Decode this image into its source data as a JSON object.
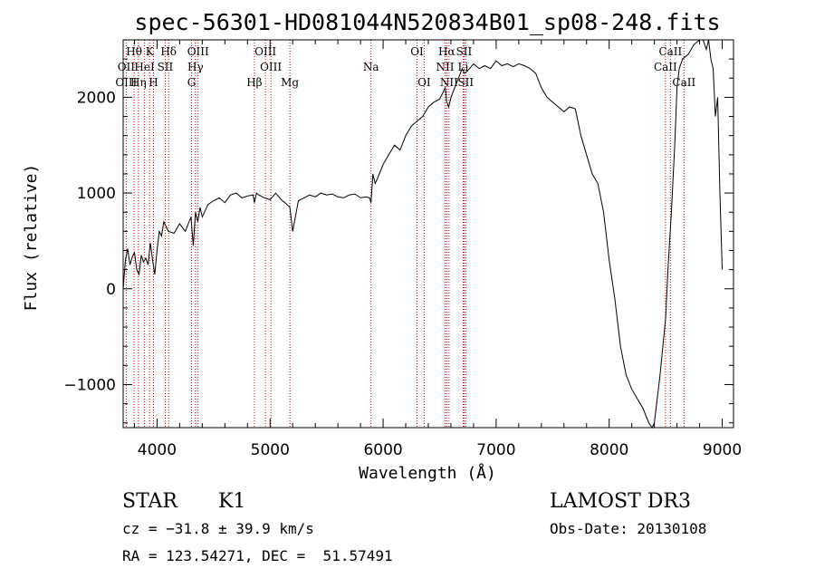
{
  "chart_data": {
    "type": "line",
    "title": "spec-56301-HD081044N520834B01_sp08-248.fits",
    "xlabel": "Wavelength (Å)",
    "ylabel": "Flux (relative)",
    "xlim": [
      3700,
      9100
    ],
    "ylim": [
      -1450,
      2600
    ],
    "x_ticks": [
      4000,
      5000,
      6000,
      7000,
      8000,
      9000
    ],
    "x_tick_labels": [
      "4000",
      "5000",
      "6000",
      "7000",
      "8000",
      "9000"
    ],
    "y_ticks": [
      -1000,
      0,
      1000,
      2000
    ],
    "y_tick_labels": [
      "−1000",
      "0",
      "1000",
      "2000"
    ],
    "series": [
      {
        "name": "flux",
        "x": [
          3700,
          3720,
          3740,
          3760,
          3780,
          3800,
          3820,
          3840,
          3860,
          3880,
          3900,
          3920,
          3940,
          3960,
          3980,
          4000,
          4020,
          4040,
          4060,
          4080,
          4100,
          4150,
          4200,
          4250,
          4300,
          4320,
          4340,
          4360,
          4380,
          4400,
          4450,
          4500,
          4550,
          4600,
          4650,
          4700,
          4750,
          4800,
          4850,
          4861,
          4880,
          4900,
          4950,
          5000,
          5050,
          5100,
          5150,
          5175,
          5200,
          5250,
          5300,
          5350,
          5400,
          5450,
          5500,
          5550,
          5600,
          5650,
          5700,
          5750,
          5800,
          5850,
          5880,
          5893,
          5910,
          5930,
          5950,
          6000,
          6050,
          6100,
          6150,
          6200,
          6250,
          6300,
          6350,
          6400,
          6450,
          6500,
          6550,
          6563,
          6580,
          6600,
          6650,
          6700,
          6720,
          6750,
          6800,
          6850,
          6900,
          6950,
          7000,
          7050,
          7100,
          7150,
          7200,
          7250,
          7300,
          7350,
          7400,
          7450,
          7500,
          7550,
          7600,
          7650,
          7700,
          7750,
          7800,
          7850,
          7900,
          7950,
          8000,
          8050,
          8100,
          8150,
          8200,
          8250,
          8300,
          8350,
          8380,
          8400,
          8420,
          8450,
          8500,
          8520,
          8550,
          8580,
          8600,
          8620,
          8650,
          8700,
          8750,
          8800,
          8830,
          8860,
          8880,
          8900,
          8920,
          8940,
          8960,
          8980,
          9000
        ],
        "values": [
          0,
          300,
          420,
          250,
          330,
          380,
          200,
          150,
          350,
          280,
          320,
          250,
          480,
          300,
          150,
          400,
          600,
          550,
          700,
          650,
          600,
          580,
          680,
          600,
          750,
          450,
          800,
          700,
          850,
          750,
          880,
          920,
          950,
          900,
          980,
          1000,
          950,
          970,
          980,
          900,
          1000,
          980,
          950,
          930,
          1000,
          930,
          880,
          850,
          600,
          920,
          950,
          980,
          960,
          1000,
          980,
          990,
          960,
          950,
          980,
          990,
          950,
          960,
          950,
          900,
          1200,
          1100,
          1150,
          1300,
          1400,
          1500,
          1450,
          1600,
          1700,
          1750,
          1800,
          1900,
          1950,
          1980,
          2100,
          1950,
          1900,
          2000,
          2150,
          2300,
          2250,
          2280,
          2350,
          2300,
          2330,
          2300,
          2380,
          2330,
          2350,
          2320,
          2350,
          2330,
          2300,
          2250,
          2100,
          2000,
          1950,
          1900,
          1850,
          1900,
          1880,
          1600,
          1400,
          1200,
          1100,
          800,
          300,
          -100,
          -600,
          -900,
          -1050,
          -1150,
          -1250,
          -1400,
          -1450,
          -1400,
          -1200,
          -900,
          -300,
          200,
          800,
          1500,
          2100,
          2300,
          2400,
          2450,
          2550,
          2600,
          2650,
          2500,
          2600,
          2400,
          2300,
          1800,
          2000,
          1000,
          200
        ]
      }
    ],
    "spectral_lines": [
      {
        "name": "Hθ",
        "wavelength": 3797,
        "row": 1
      },
      {
        "name": "K",
        "wavelength": 3934,
        "row": 1
      },
      {
        "name": "Hδ",
        "wavelength": 4102,
        "row": 1
      },
      {
        "name": "OIII",
        "wavelength": 4363,
        "row": 1
      },
      {
        "name": "OIII",
        "wavelength": 4959,
        "row": 1
      },
      {
        "name": "OI",
        "wavelength": 6300,
        "row": 1
      },
      {
        "name": "Hα",
        "wavelength": 6563,
        "row": 1
      },
      {
        "name": "SII",
        "wavelength": 6716,
        "row": 1
      },
      {
        "name": "CaII",
        "wavelength": 8542,
        "row": 1
      },
      {
        "name": "OII",
        "wavelength": 3727,
        "row": 2
      },
      {
        "name": "HeI",
        "wavelength": 3889,
        "row": 2
      },
      {
        "name": "SII",
        "wavelength": 4072,
        "row": 2
      },
      {
        "name": "Hγ",
        "wavelength": 4340,
        "row": 2
      },
      {
        "name": "OIII",
        "wavelength": 5007,
        "row": 2
      },
      {
        "name": "Na",
        "wavelength": 5893,
        "row": 2
      },
      {
        "name": "NII",
        "wavelength": 6548,
        "row": 2
      },
      {
        "name": "Li",
        "wavelength": 6708,
        "row": 2
      },
      {
        "name": "CaII",
        "wavelength": 8498,
        "row": 2
      },
      {
        "name": "OIII",
        "wavelength": 3727,
        "row": 3
      },
      {
        "name": "Hη",
        "wavelength": 3835,
        "row": 3
      },
      {
        "name": "H",
        "wavelength": 3968,
        "row": 3
      },
      {
        "name": "G",
        "wavelength": 4305,
        "row": 3
      },
      {
        "name": "Hβ",
        "wavelength": 4861,
        "row": 3
      },
      {
        "name": "Mg",
        "wavelength": 5175,
        "row": 3
      },
      {
        "name": "OI",
        "wavelength": 6363,
        "row": 3
      },
      {
        "name": "NII",
        "wavelength": 6583,
        "row": 3
      },
      {
        "name": "SII",
        "wavelength": 6731,
        "row": 3
      },
      {
        "name": "CaII",
        "wavelength": 8662,
        "row": 3
      }
    ],
    "colors": {
      "line": "#000000",
      "marker": "#cc0000"
    }
  },
  "info": {
    "object_type": "STAR",
    "subclass": "K1",
    "survey": "LAMOST DR3",
    "redshift": "cz = −31.8 ± 39.9 km/s",
    "obs_date": "Obs-Date: 20130108",
    "coords": "RA = 123.54271, DEC =  51.57491"
  }
}
